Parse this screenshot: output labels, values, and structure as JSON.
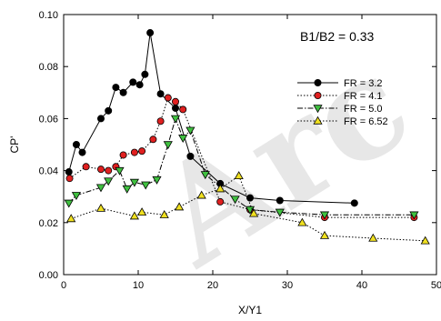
{
  "chart_data": {
    "type": "line",
    "xlabel": "X/Y1",
    "ylabel": "CP'",
    "xlim": [
      0,
      50
    ],
    "ylim": [
      0,
      0.1
    ],
    "xticks": [
      0,
      10,
      20,
      30,
      40,
      50
    ],
    "yticks": [
      0.0,
      0.02,
      0.04,
      0.06,
      0.08,
      0.1
    ],
    "xtick_labels": [
      "0",
      "10",
      "20",
      "30",
      "40",
      "50"
    ],
    "ytick_labels": [
      "0.00",
      "0.02",
      "0.04",
      "0.06",
      "0.08",
      "0.10"
    ],
    "grid": false,
    "legend_position": "right",
    "annotation": "B1/B2 = 0.33",
    "watermark": "Arc",
    "series": [
      {
        "name": "FR = 3.2",
        "marker": "circle",
        "marker_color": "#000000",
        "line_style": "solid",
        "x": [
          0.7,
          1.7,
          2.5,
          5.0,
          6.0,
          7.0,
          8.0,
          9.3,
          10.2,
          10.9,
          11.6,
          13.0,
          15.0,
          17.0,
          21.0,
          25.0,
          29.0,
          39.0
        ],
        "y": [
          0.0395,
          0.05,
          0.047,
          0.06,
          0.063,
          0.072,
          0.07,
          0.074,
          0.073,
          0.077,
          0.093,
          0.0695,
          0.064,
          0.0455,
          0.035,
          0.0295,
          0.0285,
          0.0275
        ]
      },
      {
        "name": "FR = 4.1",
        "marker": "circle",
        "marker_color": "#e02020",
        "line_style": "dotted",
        "x": [
          0.8,
          3.0,
          5.0,
          6.0,
          7.0,
          8.0,
          9.5,
          10.5,
          12.0,
          13.0,
          14.0,
          15.0,
          16.0,
          21.0,
          25.0,
          35.0,
          47.0
        ],
        "y": [
          0.037,
          0.0415,
          0.0405,
          0.04,
          0.0415,
          0.046,
          0.047,
          0.0475,
          0.052,
          0.059,
          0.068,
          0.0665,
          0.0635,
          0.028,
          0.025,
          0.022,
          0.022
        ]
      },
      {
        "name": "FR = 5.0",
        "marker": "triangle-down",
        "marker_color": "#40c040",
        "line_style": "dashdot",
        "x": [
          0.7,
          1.7,
          5.0,
          6.0,
          7.5,
          8.5,
          9.5,
          11.0,
          12.5,
          14.0,
          15.0,
          16.0,
          17.0,
          19.0,
          23.0,
          25.0,
          29.0,
          35.0,
          47.0
        ],
        "y": [
          0.0275,
          0.0305,
          0.0335,
          0.036,
          0.04,
          0.033,
          0.0355,
          0.0345,
          0.0365,
          0.05,
          0.06,
          0.0525,
          0.0555,
          0.0385,
          0.029,
          0.025,
          0.024,
          0.023,
          0.023
        ]
      },
      {
        "name": "FR = 6.52",
        "marker": "triangle-up",
        "marker_color": "#f0e020",
        "line_style": "dotted",
        "x": [
          1.0,
          5.0,
          9.5,
          10.5,
          13.5,
          15.5,
          18.5,
          21.0,
          23.5,
          25.5,
          32.0,
          35.0,
          41.5,
          48.5
        ],
        "y": [
          0.0215,
          0.0255,
          0.0225,
          0.024,
          0.023,
          0.026,
          0.0305,
          0.033,
          0.038,
          0.0235,
          0.02,
          0.015,
          0.014,
          0.013
        ]
      }
    ]
  }
}
